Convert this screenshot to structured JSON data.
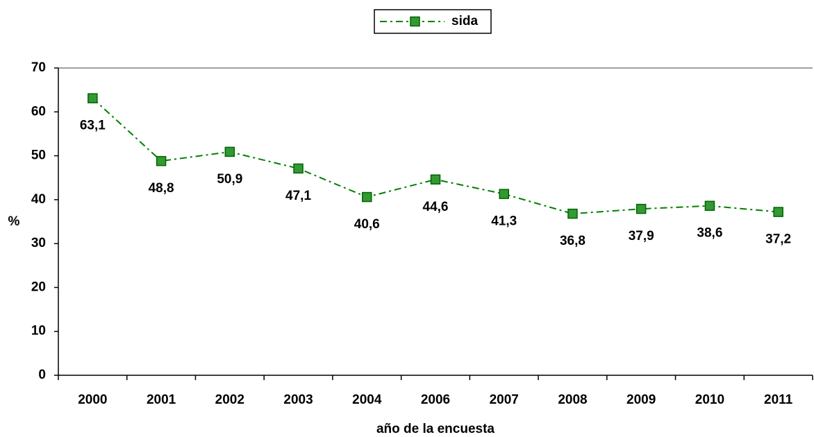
{
  "chart_data": {
    "type": "line",
    "x_label": "año de la encuesta",
    "y_label": "%",
    "categories": [
      "2000",
      "2001",
      "2002",
      "2003",
      "2004",
      "2006",
      "2007",
      "2008",
      "2009",
      "2010",
      "2011"
    ],
    "series": [
      {
        "name": "sida",
        "color": "#008000",
        "marker_fill": "#339933",
        "values": [
          63.1,
          48.8,
          50.9,
          47.1,
          40.6,
          44.6,
          41.3,
          36.8,
          37.9,
          38.6,
          37.2
        ],
        "value_labels": [
          "63,1",
          "48,8",
          "50,9",
          "47,1",
          "40,6",
          "44,6",
          "41,3",
          "36,8",
          "37,9",
          "38,6",
          "37,2"
        ]
      }
    ],
    "ylim": [
      0,
      70
    ],
    "yticks": [
      0,
      10,
      20,
      30,
      40,
      50,
      60,
      70
    ],
    "legend": "top"
  }
}
